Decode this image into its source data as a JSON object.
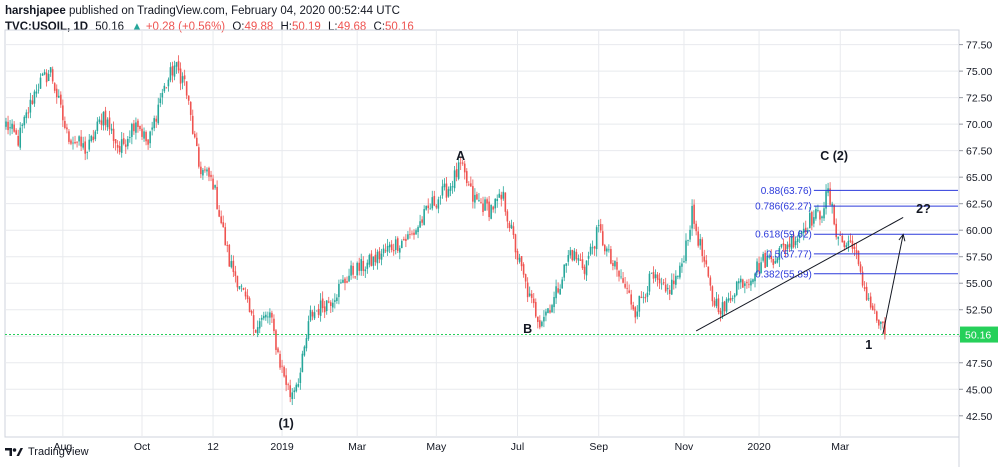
{
  "header": {
    "publisher": "harshjapee",
    "published_text": "published on TradingView.com, February 04, 2020 00:52:44 UTC",
    "symbol": "TVC:USOIL, 1D",
    "last": "50.16",
    "change": "+0.28 (+0.56%)",
    "open_label": "O:",
    "open": "49.88",
    "high_label": "H:",
    "high": "50.19",
    "low_label": "L:",
    "low": "49.68",
    "close_label": "C:",
    "close": "50.16"
  },
  "footer": {
    "brand": "TradingView"
  },
  "colors": {
    "up": "#26a69a",
    "down": "#ef5350",
    "grid": "#e8eaee",
    "fib": "#2c3adb",
    "last_line": "#26d05a"
  },
  "chart_data": {
    "type": "candlestick",
    "y_range": [
      40.5,
      78.5
    ],
    "y_ticks": [
      "77.50",
      "75.00",
      "72.50",
      "70.00",
      "67.50",
      "65.00",
      "62.50",
      "60.00",
      "57.50",
      "55.00",
      "52.50",
      "50.00",
      "47.50",
      "45.00",
      "42.50"
    ],
    "x_labels": [
      "Aug",
      "Oct",
      "12",
      "2019",
      "Mar",
      "May",
      "Jul",
      "Sep",
      "Nov",
      "2020",
      "Mar"
    ],
    "last_price": "50.16",
    "anchors": [
      {
        "i": 0,
        "p": 70.0
      },
      {
        "i": 6,
        "p": 68.5
      },
      {
        "i": 15,
        "p": 73.5
      },
      {
        "i": 22,
        "p": 75.0
      },
      {
        "i": 30,
        "p": 69.0
      },
      {
        "i": 40,
        "p": 67.5
      },
      {
        "i": 48,
        "p": 71.0
      },
      {
        "i": 56,
        "p": 67.5
      },
      {
        "i": 64,
        "p": 70.5
      },
      {
        "i": 70,
        "p": 68.0
      },
      {
        "i": 76,
        "p": 72.5
      },
      {
        "i": 83,
        "p": 75.5
      },
      {
        "i": 88,
        "p": 74.0
      },
      {
        "i": 95,
        "p": 66.0
      },
      {
        "i": 102,
        "p": 64.5
      },
      {
        "i": 110,
        "p": 57.0
      },
      {
        "i": 115,
        "p": 55.0
      },
      {
        "i": 122,
        "p": 51.0
      },
      {
        "i": 130,
        "p": 52.0
      },
      {
        "i": 135,
        "p": 47.5
      },
      {
        "i": 140,
        "p": 44.5
      },
      {
        "i": 145,
        "p": 46.5
      },
      {
        "i": 150,
        "p": 52.0
      },
      {
        "i": 160,
        "p": 53.5
      },
      {
        "i": 170,
        "p": 56.0
      },
      {
        "i": 180,
        "p": 57.0
      },
      {
        "i": 190,
        "p": 58.5
      },
      {
        "i": 200,
        "p": 59.5
      },
      {
        "i": 210,
        "p": 62.5
      },
      {
        "i": 218,
        "p": 64.0
      },
      {
        "i": 224,
        "p": 66.0
      },
      {
        "i": 230,
        "p": 63.0
      },
      {
        "i": 238,
        "p": 62.0
      },
      {
        "i": 245,
        "p": 63.0
      },
      {
        "i": 252,
        "p": 57.5
      },
      {
        "i": 258,
        "p": 53.5
      },
      {
        "i": 263,
        "p": 51.5
      },
      {
        "i": 270,
        "p": 53.5
      },
      {
        "i": 278,
        "p": 58.0
      },
      {
        "i": 285,
        "p": 56.5
      },
      {
        "i": 292,
        "p": 60.0
      },
      {
        "i": 298,
        "p": 57.0
      },
      {
        "i": 304,
        "p": 55.0
      },
      {
        "i": 310,
        "p": 52.5
      },
      {
        "i": 318,
        "p": 55.5
      },
      {
        "i": 325,
        "p": 54.0
      },
      {
        "i": 332,
        "p": 56.0
      },
      {
        "i": 338,
        "p": 61.5
      },
      {
        "i": 342,
        "p": 58.5
      },
      {
        "i": 348,
        "p": 53.5
      },
      {
        "i": 354,
        "p": 52.5
      },
      {
        "i": 360,
        "p": 55.0
      },
      {
        "i": 366,
        "p": 55.5
      },
      {
        "i": 372,
        "p": 57.0
      },
      {
        "i": 378,
        "p": 57.5
      },
      {
        "i": 384,
        "p": 58.5
      },
      {
        "i": 390,
        "p": 59.5
      },
      {
        "i": 396,
        "p": 61.0
      },
      {
        "i": 401,
        "p": 61.5
      },
      {
        "i": 405,
        "p": 63.5
      },
      {
        "i": 409,
        "p": 60.0
      },
      {
        "i": 413,
        "p": 58.5
      },
      {
        "i": 417,
        "p": 59.0
      },
      {
        "i": 421,
        "p": 55.5
      },
      {
        "i": 425,
        "p": 53.5
      },
      {
        "i": 429,
        "p": 51.5
      },
      {
        "i": 433,
        "p": 50.16
      }
    ],
    "fib_levels": [
      {
        "label": "0.88(63.76)",
        "p": 63.76
      },
      {
        "label": "0.786(62.27)",
        "p": 62.27
      },
      {
        "label": "0.618(59.62)",
        "p": 59.62
      },
      {
        "label": "0.5(57.77)",
        "p": 57.77
      },
      {
        "label": "0.382(55.89)",
        "p": 55.89
      }
    ],
    "wave_labels": [
      {
        "text": "A",
        "i": 224,
        "p": 66.6
      },
      {
        "text": "B",
        "i": 257,
        "p": 50.3
      },
      {
        "text": "C (2)",
        "i": 408,
        "p": 66.6
      },
      {
        "text": "(1)",
        "i": 138,
        "p": 41.4
      },
      {
        "text": "1",
        "i": 425,
        "p": 48.8
      },
      {
        "text": "2?",
        "i": 452,
        "p": 61.6
      }
    ],
    "trendline": {
      "i1": 340,
      "p1": 50.5,
      "i2": 442,
      "p2": 61.2
    },
    "projection": {
      "i1": 432,
      "p1": 50.2,
      "i2": 442,
      "p2": 59.6
    }
  }
}
